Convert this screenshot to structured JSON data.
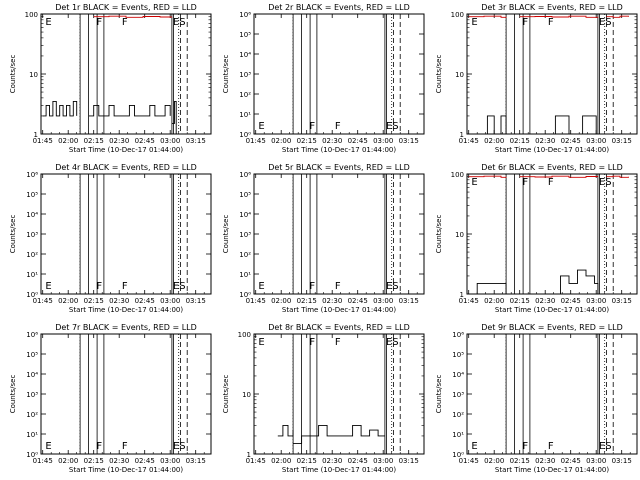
{
  "page": {
    "background": "#ffffff"
  },
  "colors": {
    "events": "#000000",
    "lld": "#cc0000"
  },
  "x_axis": {
    "tick_labels": [
      "01:45",
      "02:00",
      "02:15",
      "02:30",
      "02:45",
      "03:00",
      "03:15"
    ],
    "xlabel": "Start Time (10-Dec-17 01:44:00)"
  },
  "chart_data": [
    {
      "type": "line",
      "scale": "log",
      "title": "Det 1r BLACK = Events, RED = LLD",
      "ylabel": "Counts/sec",
      "ylim": [
        1,
        100
      ],
      "y_tick_labels": [
        "1",
        "10",
        "100"
      ],
      "annotations": [
        "E",
        "F",
        "F",
        "ES"
      ],
      "series": [
        {
          "name": "Events",
          "color": "#000000",
          "segments": [
            {
              "t": [
                1,
                3,
                5,
                7,
                9,
                11,
                13,
                15,
                17,
                19,
                21
              ],
              "v": [
                2,
                3,
                2,
                3.5,
                2,
                3,
                2,
                3,
                2,
                3.5,
                2
              ]
            },
            {
              "t": [
                28,
                31,
                34,
                37,
                40,
                43,
                46,
                49,
                52,
                55,
                58,
                61,
                64,
                67,
                70,
                73,
                76
              ],
              "v": [
                2,
                3,
                2,
                2,
                3,
                2,
                2,
                2,
                3,
                2,
                2,
                2,
                3,
                2,
                2,
                3,
                2
              ]
            },
            {
              "t": [
                77,
                78.5,
                79.5
              ],
              "v": [
                1.5,
                3.5,
                1
              ]
            }
          ]
        },
        {
          "name": "LLD",
          "color": "#cc0000",
          "segments": [
            {
              "t": [
                31,
                40,
                50,
                60,
                70,
                77
              ],
              "v": [
                90,
                92,
                88,
                91,
                89,
                90
              ]
            }
          ]
        }
      ]
    },
    {
      "type": "line",
      "scale": "log",
      "title": "Det 2r BLACK = Events, RED = LLD",
      "ylabel": "Counts/sec",
      "ylim": [
        1,
        1000000
      ],
      "y_tick_labels": [
        "10⁰",
        "10¹",
        "10²",
        "10³",
        "10⁴",
        "10⁵",
        "10⁶"
      ],
      "annotations": [
        "E",
        "F",
        "F",
        "ES"
      ],
      "series": []
    },
    {
      "type": "line",
      "scale": "log",
      "title": "Det 3r BLACK = Events, RED = LLD",
      "ylabel": "Counts/sec",
      "ylim": [
        1,
        100
      ],
      "y_tick_labels": [
        "1",
        "10",
        "100"
      ],
      "annotations": [
        "E",
        "F",
        "F",
        "ES"
      ],
      "series": [
        {
          "name": "Events",
          "color": "#000000",
          "segments": [
            {
              "t": [
                8,
                12,
                16,
                20,
                23
              ],
              "v": [
                1,
                2,
                1,
                2,
                1
              ]
            },
            {
              "t": [
                44,
                52,
                60,
                68,
                76
              ],
              "v": [
                1,
                2,
                1,
                2,
                1
              ]
            }
          ]
        },
        {
          "name": "LLD",
          "color": "#cc0000",
          "segments": [
            {
              "t": [
                1,
                10,
                20,
                23
              ],
              "v": [
                90,
                92,
                88,
                90
              ]
            },
            {
              "t": [
                31,
                40,
                50,
                60,
                70,
                77
              ],
              "v": [
                90,
                91,
                89,
                92,
                88,
                90
              ]
            },
            {
              "t": [
                82,
                86,
                90,
                95
              ],
              "v": [
                90,
                88,
                92,
                90
              ]
            }
          ]
        }
      ]
    },
    {
      "type": "line",
      "scale": "log",
      "title": "Det 4r BLACK = Events, RED = LLD",
      "ylabel": "Counts/sec",
      "ylim": [
        1,
        1000000
      ],
      "y_tick_labels": [
        "10⁰",
        "10¹",
        "10²",
        "10³",
        "10⁴",
        "10⁵",
        "10⁶"
      ],
      "annotations": [
        "E",
        "F",
        "F",
        "ES"
      ],
      "series": []
    },
    {
      "type": "line",
      "scale": "log",
      "title": "Det 5r BLACK = Events, RED = LLD",
      "ylabel": "Counts/sec",
      "ylim": [
        1,
        1000000
      ],
      "y_tick_labels": [
        "10⁰",
        "10¹",
        "10²",
        "10³",
        "10⁴",
        "10⁵",
        "10⁶"
      ],
      "annotations": [
        "E",
        "F",
        "F",
        "ES"
      ],
      "series": []
    },
    {
      "type": "line",
      "scale": "log",
      "title": "Det 6r BLACK = Events, RED = LLD",
      "ylabel": "Counts/sec",
      "ylim": [
        1,
        100
      ],
      "y_tick_labels": [
        "1",
        "10",
        "100"
      ],
      "annotations": [
        "E",
        "F",
        "F",
        "ES"
      ],
      "series": [
        {
          "name": "Events",
          "color": "#000000",
          "segments": [
            {
              "t": [
                1,
                6,
                11,
                16,
                21,
                23
              ],
              "v": [
                1,
                1.5,
                1.5,
                1.5,
                1.5,
                1
              ]
            },
            {
              "t": [
                50,
                55,
                60,
                65,
                70,
                75,
                77
              ],
              "v": [
                1,
                2,
                1.5,
                2.5,
                2,
                1.5,
                1
              ]
            }
          ]
        },
        {
          "name": "LLD",
          "color": "#cc0000",
          "segments": [
            {
              "t": [
                1,
                10,
                20,
                23
              ],
              "v": [
                90,
                92,
                88,
                90
              ]
            },
            {
              "t": [
                31,
                40,
                50,
                60,
                70,
                77
              ],
              "v": [
                90,
                89,
                92,
                88,
                91,
                90
              ]
            },
            {
              "t": [
                82,
                86,
                90,
                95
              ],
              "v": [
                90,
                92,
                88,
                90
              ]
            }
          ]
        }
      ]
    },
    {
      "type": "line",
      "scale": "log",
      "title": "Det 7r BLACK = Events, RED = LLD",
      "ylabel": "Counts/sec",
      "ylim": [
        1,
        1000000
      ],
      "y_tick_labels": [
        "10⁰",
        "10¹",
        "10²",
        "10³",
        "10⁴",
        "10⁵",
        "10⁶"
      ],
      "annotations": [
        "E",
        "F",
        "F",
        "ES"
      ],
      "series": []
    },
    {
      "type": "line",
      "scale": "log",
      "title": "Det 8r BLACK = Events, RED = LLD",
      "ylabel": "Counts/sec",
      "ylim": [
        1,
        100
      ],
      "y_tick_labels": [
        "1",
        "10",
        "100"
      ],
      "annotations": [
        "E",
        "F",
        "F",
        "ES"
      ],
      "series": [
        {
          "name": "Events",
          "color": "#000000",
          "segments": [
            {
              "t": [
                14,
                17,
                20,
                23
              ],
              "v": [
                2,
                3,
                2,
                2.5
              ]
            },
            {
              "t": [
                23,
                28,
                33,
                38,
                43,
                48,
                53,
                58,
                63,
                68,
                73,
                77
              ],
              "v": [
                1.5,
                2,
                2,
                3,
                2,
                2,
                2,
                3,
                2,
                2.5,
                2,
                2
              ]
            }
          ]
        }
      ]
    },
    {
      "type": "line",
      "scale": "log",
      "title": "Det 9r BLACK = Events, RED = LLD",
      "ylabel": "Counts/sec",
      "ylim": [
        1,
        1000000
      ],
      "y_tick_labels": [
        "10⁰",
        "10¹",
        "10²",
        "10³",
        "10⁴",
        "10⁵",
        "10⁶"
      ],
      "annotations": [
        "E",
        "F",
        "F",
        "ES"
      ],
      "series": []
    }
  ]
}
